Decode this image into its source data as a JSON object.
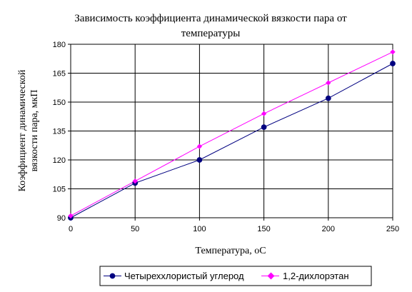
{
  "chart_data": {
    "type": "line",
    "title_lines": [
      "Зависимость коэффициента динамической вязкости пара от",
      "температуры"
    ],
    "xlabel": "Температура, оС",
    "ylabel_lines": [
      "Коэффициент динамической",
      "вязкости пара, мкП"
    ],
    "x": [
      0,
      50,
      100,
      150,
      200,
      250
    ],
    "xlim": [
      0,
      250
    ],
    "ylim": [
      90,
      180
    ],
    "xticks": [
      "0",
      "50",
      "100",
      "150",
      "200",
      "250"
    ],
    "yticks": [
      "90",
      "105",
      "120",
      "135",
      "150",
      "165",
      "180"
    ],
    "grid": "horizontal and vertical",
    "legend_position": "bottom",
    "series": [
      {
        "name": "Четыреххлористый углерод",
        "values": [
          90,
          108,
          120,
          137,
          152,
          170
        ],
        "color": "#000080",
        "marker": "circle"
      },
      {
        "name": "1,2-дихлорэтан",
        "values": [
          91,
          109,
          127,
          144,
          160,
          176
        ],
        "color": "#ff00ff",
        "marker": "diamond"
      }
    ]
  }
}
